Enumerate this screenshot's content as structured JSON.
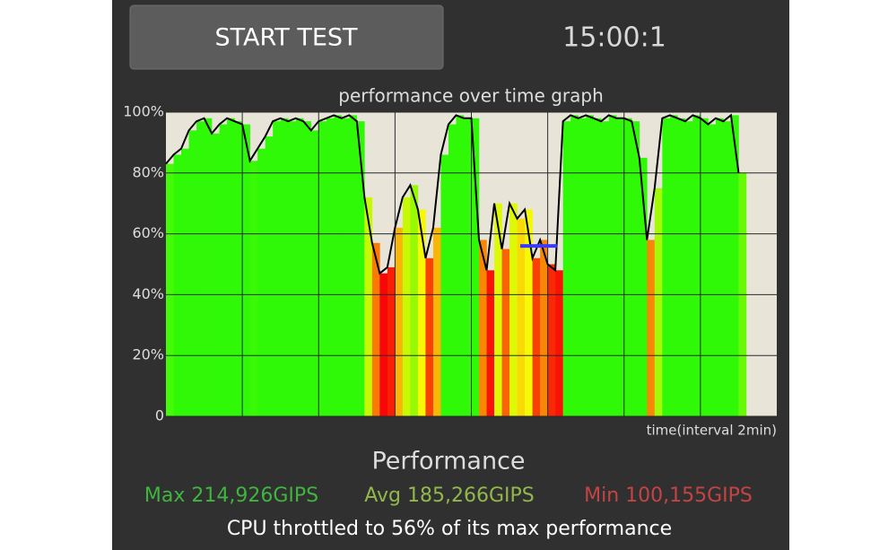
{
  "button": {
    "label": "START TEST"
  },
  "timer": "15:00:1",
  "chart_data": {
    "type": "line",
    "title": "performance over time graph",
    "x_label": "time(interval 2min)",
    "x": [
      0,
      0.2,
      0.4,
      0.6,
      0.8,
      1.0,
      1.2,
      1.4,
      1.6,
      1.8,
      2.0,
      2.2,
      2.4,
      2.6,
      2.8,
      3.0,
      3.2,
      3.4,
      3.6,
      3.8,
      4.0,
      4.2,
      4.4,
      4.6,
      4.8,
      5.0,
      5.2,
      5.4,
      5.6,
      5.8,
      6.0,
      6.2,
      6.4,
      6.6,
      6.8,
      7.0,
      7.2,
      7.4,
      7.6,
      7.8,
      8.0,
      8.2,
      8.4,
      8.6,
      8.8,
      9.0,
      9.2,
      9.4,
      9.6,
      9.8,
      10.0,
      10.2,
      10.4,
      10.6,
      10.8,
      11.0,
      11.2,
      11.4,
      11.6,
      11.8,
      12.0,
      12.2,
      12.4,
      12.6,
      12.8,
      13.0,
      13.2,
      13.4,
      13.6,
      13.8,
      14.0,
      14.2,
      14.4,
      14.6,
      14.8,
      15.0
    ],
    "values": [
      83,
      86,
      88,
      94,
      97,
      98,
      93,
      96,
      98,
      97,
      96,
      84,
      88,
      92,
      97,
      98,
      97,
      98,
      97,
      94,
      97,
      98,
      99,
      98,
      99,
      97,
      72,
      57,
      47,
      49,
      62,
      72,
      76,
      68,
      52,
      62,
      86,
      96,
      99,
      98,
      98,
      58,
      48,
      70,
      55,
      70,
      65,
      68,
      52,
      58,
      50,
      48,
      97,
      99,
      98,
      99,
      98,
      97,
      99,
      98,
      98,
      97,
      85,
      58,
      75,
      98,
      99,
      98,
      97,
      99,
      98,
      96,
      98,
      97,
      99,
      80
    ],
    "color": "#000000",
    "xlim": [
      0,
      16
    ],
    "xgrid": [
      2,
      4,
      6,
      8,
      10,
      12,
      14
    ],
    "ylim": [
      0,
      100
    ],
    "yticks": [
      0,
      {
        "value": 20,
        "label": "20%"
      },
      {
        "value": 40,
        "label": "40%"
      },
      {
        "value": 60,
        "label": "60%"
      },
      {
        "value": 80,
        "label": "80%"
      },
      {
        "value": 100,
        "label": "100%"
      }
    ],
    "grid": true,
    "background": "#e8e5d8",
    "avg_line": 56,
    "avg_color": "#3a3aff"
  },
  "summary": {
    "title": "Performance",
    "max": "Max 214,926GIPS",
    "avg": "Avg 185,266GIPS",
    "min": "Min 100,155GIPS",
    "note": "CPU throttled to 56% of its max performance"
  }
}
